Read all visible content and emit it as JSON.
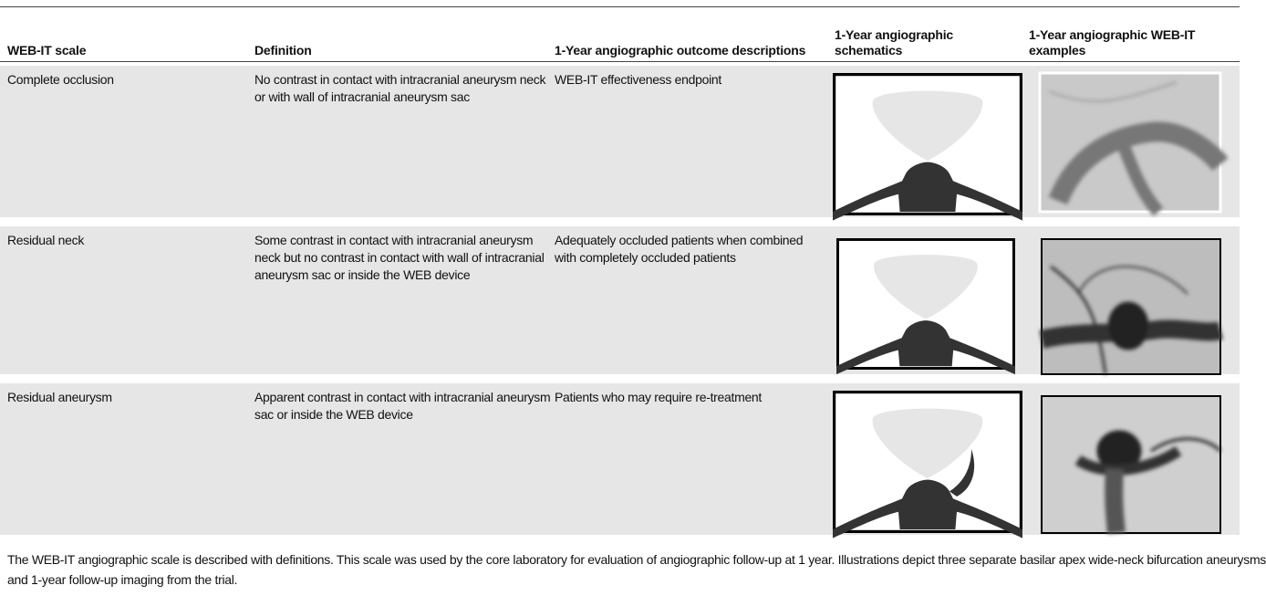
{
  "table": {
    "header": [
      "WEB-IT scale",
      "Definition",
      "1-Year angiographic outcome descriptions",
      "1-Year angiographic schematics",
      "1-Year angiographic WEB-IT examples"
    ],
    "rows": [
      [
        "Complete occlusion",
        "No contrast in contact with intracranial aneurysm neck or with wall of intracranial aneurysm sac",
        "WEB-IT effectiveness endpoint"
      ],
      [
        "Residual neck",
        "Some contrast in contact with intracranial aneurysm neck but no contrast in contact with wall of intracranial aneurysm sac or inside the WEB device",
        "Adequately occluded patients when combined with completely occluded patients"
      ],
      [
        "Residual aneurysm",
        "Apparent contrast in contact with intracranial aneurysm sac or inside the WEB device",
        "Patients who may require re-treatment"
      ]
    ],
    "caption": "The WEB-IT angiographic scale is described with definitions. This scale was used by the core laboratory for evaluation of angiographic follow-up at 1 year. Illustrations depict three separate basilar apex wide-neck bifurcation aneurysms and 1-year follow-up imaging from the trial."
  }
}
